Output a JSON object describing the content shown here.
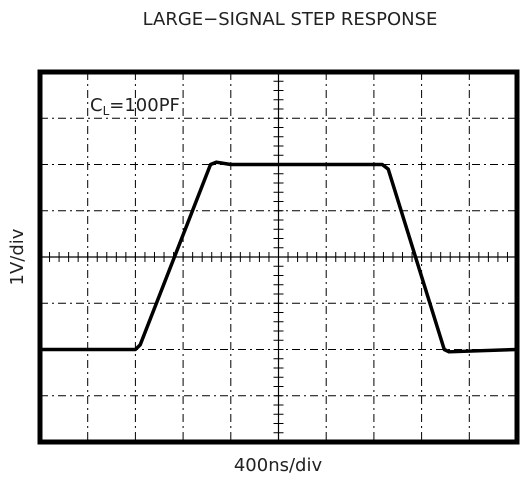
{
  "chart_data": {
    "type": "line",
    "title": "LARGE−SIGNAL STEP RESPONSE",
    "x_label": "400ns/div",
    "y_label": "1V/div",
    "annotation": [
      "C",
      "L",
      "=100PF"
    ],
    "x": [
      0,
      800,
      840,
      1430,
      1480,
      1600,
      2870,
      2920,
      3390,
      3430,
      4000
    ],
    "series": [
      {
        "color": "#000000",
        "values": [
          -2,
          -2,
          -1.9,
          2,
          2.05,
          2,
          2,
          1.9,
          -2,
          -2.05,
          -2
        ]
      }
    ],
    "xlim": [
      0,
      4000
    ],
    "ylim": [
      -4,
      4
    ],
    "xticks": [
      0,
      400,
      800,
      1200,
      1600,
      2000,
      2400,
      2800,
      3200,
      3600,
      4000
    ],
    "yticks": [
      -4,
      -3,
      -2,
      -1,
      0,
      1,
      2,
      3,
      4
    ],
    "grid": true
  }
}
